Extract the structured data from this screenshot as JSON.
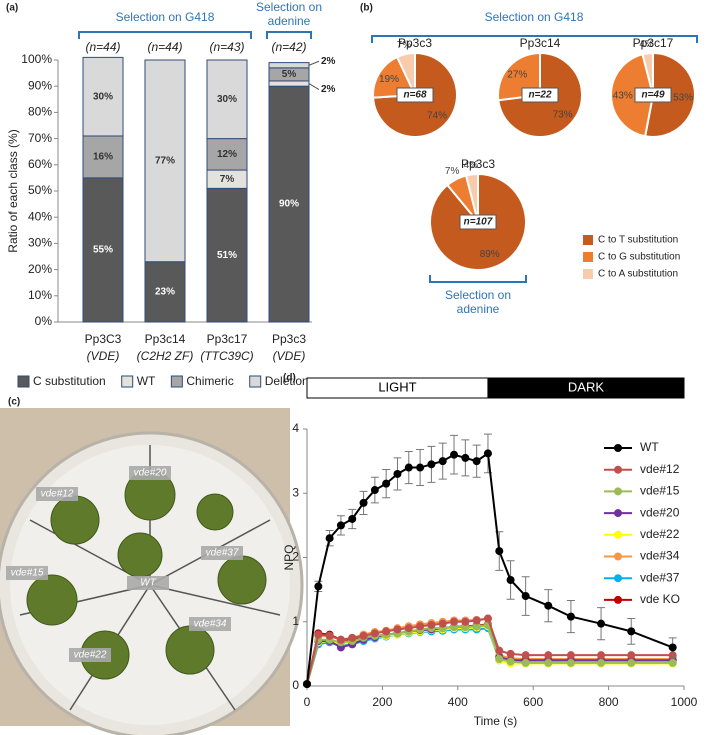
{
  "chart_data": [
    {
      "type": "stacked_bar",
      "panel_label": "(a)",
      "ylabel": "Ratio of each class (%)",
      "groups": [
        {
          "label": [
            "Selection on G418"
          ]
        },
        {
          "label": [
            "Selection on",
            "adenine"
          ]
        }
      ],
      "categories": [
        "Pp3C3",
        "Pp3c14",
        "Pp3c17",
        "Pp3c3"
      ],
      "category_notes": [
        "(VDE)",
        "(C2H2 ZF)",
        "(TTC39C)",
        "(VDE)"
      ],
      "n_labels": [
        "(n=44)",
        "(n=44)",
        "(n=43)",
        "(n=42)"
      ],
      "series": [
        {
          "name": "C substitution",
          "color": "#595959",
          "values": [
            55,
            23,
            51,
            90
          ],
          "value_labels": [
            "55%",
            "23%",
            "51%",
            "90%"
          ]
        },
        {
          "name": "WT",
          "color": "#e4e2dc",
          "values": [
            0,
            0,
            7,
            2
          ],
          "value_labels": [
            null,
            null,
            "7%",
            "2%"
          ]
        },
        {
          "name": "Chimeric",
          "color": "#a6a6a6",
          "values": [
            16,
            0,
            12,
            5
          ],
          "value_labels": [
            "16%",
            null,
            "12%",
            "5%"
          ]
        },
        {
          "name": "Deletion",
          "color": "#d9d9d9",
          "values": [
            30,
            77,
            30,
            2
          ],
          "value_labels": [
            "30%",
            "77%",
            "30%",
            "2%"
          ]
        }
      ],
      "ylim": [
        0,
        100
      ],
      "yticks": [
        {
          "value": 0,
          "label": "0%"
        },
        {
          "value": 10,
          "label": "10%"
        },
        {
          "value": 20,
          "label": "20%"
        },
        {
          "value": 30,
          "label": "30%"
        },
        {
          "value": 40,
          "label": "40%"
        },
        {
          "value": 50,
          "label": "50%"
        },
        {
          "value": 60,
          "label": "60%"
        },
        {
          "value": 70,
          "label": "70%"
        },
        {
          "value": 80,
          "label": "80%"
        },
        {
          "value": 90,
          "label": "90%"
        },
        {
          "value": 100,
          "label": "100%"
        }
      ]
    },
    {
      "type": "pie",
      "panel_label": "(b)",
      "groups": [
        {
          "label": [
            "Selection on G418"
          ]
        },
        {
          "label": [
            "Selection on",
            "adenine"
          ]
        }
      ],
      "categories": [
        "C to T substitution",
        "C to G substitution",
        "C to A substitution"
      ],
      "colors": [
        "#c55a1e",
        "#ed7d31",
        "#f8cbad"
      ],
      "pies": [
        {
          "title": "Pp3c3",
          "n_label": "n=68",
          "values": [
            74,
            19,
            7
          ],
          "value_labels": [
            "74%",
            "19%",
            "7%"
          ]
        },
        {
          "title": "Pp3c14",
          "n_label": "n=22",
          "values": [
            73,
            27,
            null
          ],
          "value_labels": [
            "73%",
            "27%",
            null
          ]
        },
        {
          "title": "Pp3c17",
          "n_label": "n=49",
          "values": [
            53,
            43,
            4
          ],
          "value_labels": [
            "53%",
            "43%",
            "4%"
          ]
        },
        {
          "title": "Pp3c3",
          "n_label": "n=107",
          "values": [
            89,
            7,
            4
          ],
          "value_labels": [
            "89%",
            "7%",
            "4%"
          ]
        }
      ]
    },
    {
      "type": "line",
      "panel_label": "(d)",
      "xlabel": "Time (s)",
      "ylabel": "NPQ",
      "phases": [
        {
          "label": "LIGHT",
          "start": 0,
          "end": 480
        },
        {
          "label": "DARK",
          "start": 480,
          "end": 1000
        }
      ],
      "x": [
        0,
        30,
        60,
        90,
        120,
        150,
        180,
        210,
        240,
        270,
        300,
        330,
        360,
        390,
        420,
        450,
        480,
        510,
        540,
        580,
        640,
        700,
        780,
        860,
        970
      ],
      "series": [
        {
          "name": "WT",
          "color": "#000000",
          "values": [
            0.03,
            1.55,
            2.3,
            2.5,
            2.6,
            2.85,
            3.05,
            3.15,
            3.3,
            3.4,
            3.4,
            3.45,
            3.5,
            3.6,
            3.55,
            3.5,
            3.62,
            2.1,
            1.65,
            1.4,
            1.25,
            1.08,
            0.97,
            0.85,
            0.6
          ],
          "errors": [
            0.02,
            0.08,
            0.12,
            0.15,
            0.15,
            0.18,
            0.2,
            0.22,
            0.25,
            0.25,
            0.28,
            0.28,
            0.28,
            0.3,
            0.28,
            0.25,
            0.3,
            0.3,
            0.3,
            0.3,
            0.25,
            0.25,
            0.25,
            0.2,
            0.15
          ]
        },
        {
          "name": "vde#12",
          "color": "#c0504d",
          "values": [
            0.03,
            0.8,
            0.78,
            0.72,
            0.75,
            0.78,
            0.82,
            0.85,
            0.88,
            0.9,
            0.93,
            0.95,
            0.97,
            1.0,
            1.0,
            1.02,
            1.05,
            0.55,
            0.5,
            0.48,
            0.48,
            0.48,
            0.48,
            0.48,
            0.48
          ]
        },
        {
          "name": "vde#15",
          "color": "#9bbb59",
          "values": [
            0.03,
            0.72,
            0.72,
            0.68,
            0.7,
            0.75,
            0.78,
            0.8,
            0.82,
            0.85,
            0.88,
            0.9,
            0.9,
            0.92,
            0.92,
            0.93,
            0.95,
            0.42,
            0.38,
            0.36,
            0.36,
            0.36,
            0.36,
            0.36,
            0.36
          ]
        },
        {
          "name": "vde#20",
          "color": "#7030a0",
          "values": [
            0.03,
            0.7,
            0.7,
            0.6,
            0.65,
            0.72,
            0.76,
            0.8,
            0.82,
            0.85,
            0.87,
            0.88,
            0.9,
            0.92,
            0.92,
            0.93,
            0.95,
            0.45,
            0.4,
            0.4,
            0.4,
            0.4,
            0.4,
            0.4,
            0.4
          ]
        },
        {
          "name": "vde#22",
          "color": "#ffff00",
          "values": [
            0.03,
            0.68,
            0.7,
            0.66,
            0.68,
            0.72,
            0.76,
            0.78,
            0.8,
            0.83,
            0.85,
            0.87,
            0.88,
            0.9,
            0.9,
            0.91,
            0.93,
            0.4,
            0.35,
            0.35,
            0.35,
            0.35,
            0.35,
            0.35,
            0.35
          ]
        },
        {
          "name": "vde#34",
          "color": "#f79646",
          "values": [
            0.03,
            0.78,
            0.78,
            0.72,
            0.75,
            0.8,
            0.84,
            0.86,
            0.9,
            0.93,
            0.96,
            0.98,
            1.0,
            1.02,
            1.02,
            1.03,
            1.05,
            0.48,
            0.43,
            0.42,
            0.42,
            0.42,
            0.42,
            0.42,
            0.42
          ]
        },
        {
          "name": "vde#37",
          "color": "#00b0f0",
          "values": [
            0.03,
            0.65,
            0.68,
            0.62,
            0.65,
            0.7,
            0.74,
            0.77,
            0.8,
            0.82,
            0.84,
            0.85,
            0.86,
            0.88,
            0.88,
            0.88,
            0.9,
            0.4,
            0.37,
            0.36,
            0.36,
            0.36,
            0.36,
            0.36,
            0.36
          ]
        },
        {
          "name": "vde KO",
          "color": "#c00000",
          "values": [
            0.03,
            0.82,
            0.8,
            0.72,
            0.72,
            0.75,
            0.78,
            0.8,
            0.82,
            0.85,
            0.86,
            0.88,
            0.9,
            0.92,
            0.93,
            0.94,
            0.96,
            0.45,
            0.4,
            0.4,
            0.4,
            0.4,
            0.4,
            0.4,
            0.4
          ]
        }
      ],
      "xlim": [
        0,
        1000
      ],
      "ylim": [
        0,
        4
      ],
      "xticks": [
        0,
        200,
        400,
        600,
        800,
        1000
      ],
      "yticks": [
        0,
        1,
        2,
        3,
        4
      ]
    }
  ],
  "photo": {
    "panel_label": "(c)",
    "labels": [
      "vde#12",
      "vde#20",
      "vde#15",
      "vde#37",
      "WT",
      "vde#22",
      "vde#34"
    ]
  }
}
